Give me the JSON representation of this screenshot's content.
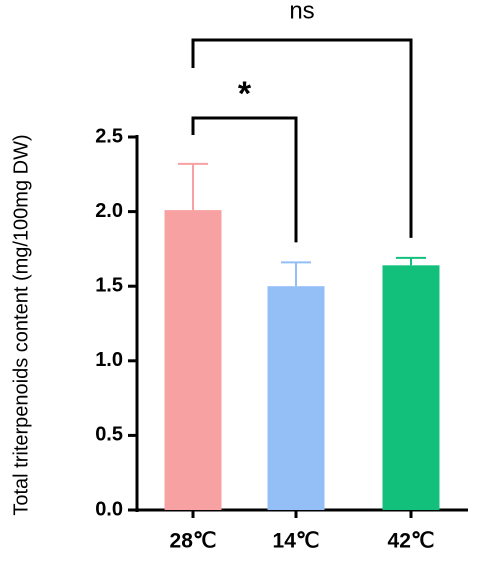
{
  "chart_data": {
    "type": "bar",
    "y_label": "Total triterpenoids content (mg/100mg DW)",
    "categories": [
      "28℃",
      "14℃",
      "42℃"
    ],
    "values": [
      2.01,
      1.5,
      1.64
    ],
    "errors": [
      0.31,
      0.16,
      0.05
    ],
    "colors": [
      "#f7a1a3",
      "#93bff6",
      "#12c07c"
    ],
    "error_colors": [
      "#f7a1a3",
      "#93bff6",
      "#12c07c"
    ],
    "ylim": [
      0,
      2.5
    ],
    "yticks": [
      {
        "value": 0,
        "label": "0.0"
      },
      {
        "value": 0.5,
        "label": "0.5"
      },
      {
        "value": 1,
        "label": "1.0"
      },
      {
        "value": 1.5,
        "label": "1.5"
      },
      {
        "value": 2,
        "label": "2.0"
      },
      {
        "value": 2.5,
        "label": "2.5"
      }
    ],
    "annotations": [
      {
        "label": "*",
        "from": 0,
        "to": 1
      },
      {
        "label": "ns",
        "from": 0,
        "to": 2
      }
    ]
  }
}
